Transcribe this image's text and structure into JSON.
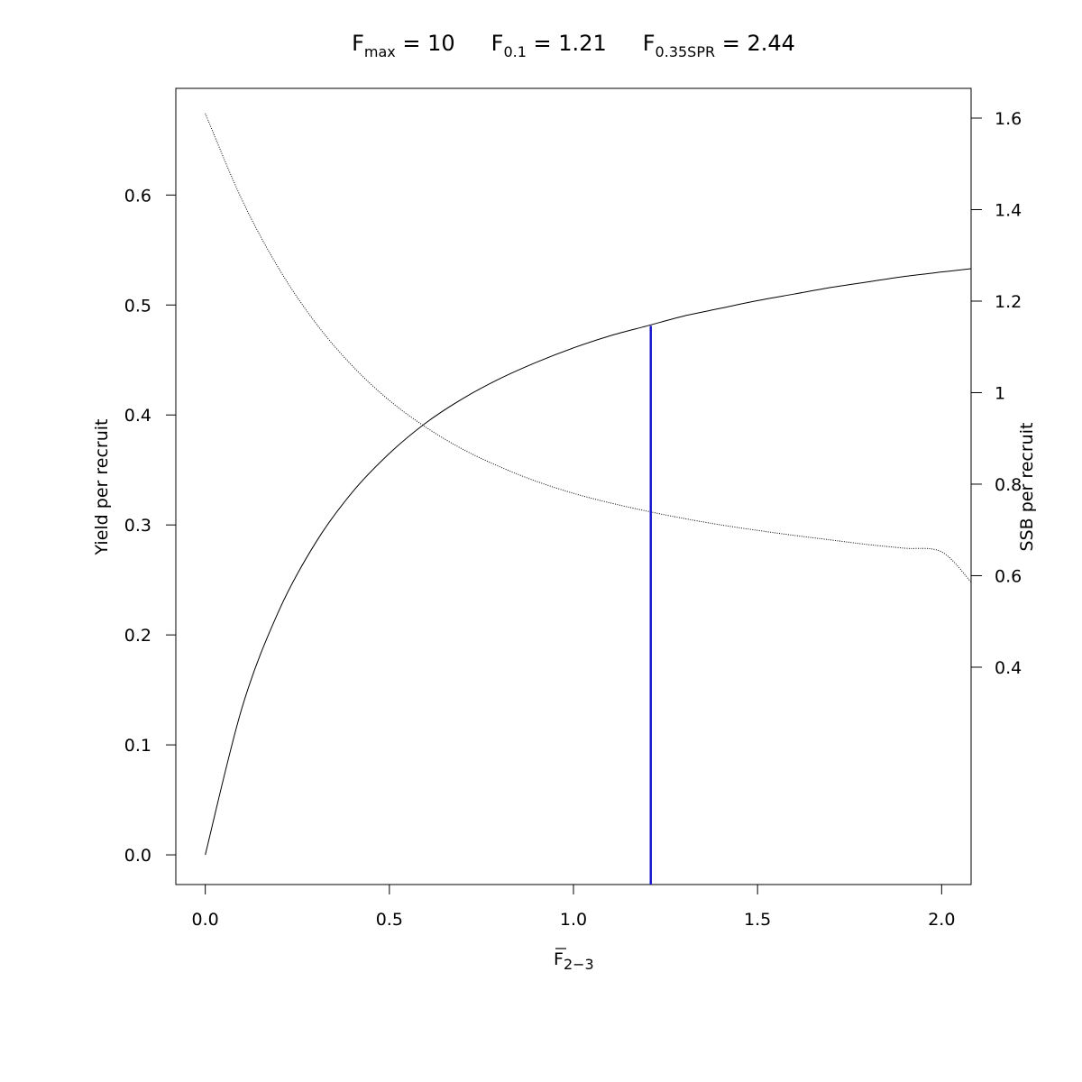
{
  "title": {
    "fmax": {
      "main": "F",
      "sub": "max",
      "rest": " = 10"
    },
    "f01": {
      "main": "F",
      "sub": "0.1",
      "rest": " = 1.21"
    },
    "f035": {
      "main": "F",
      "sub": "0.35SPR",
      "rest": " = 2.44"
    }
  },
  "chart_data": {
    "type": "line",
    "xlabel": {
      "main": "F",
      "sub": "2−3"
    },
    "ylabel": "Yield per recruit",
    "y2label": "SSB per recruit",
    "xlim": [
      -0.08,
      2.08
    ],
    "ylim": [
      -0.027,
      0.697
    ],
    "y2lim": [
      -0.075,
      1.665
    ],
    "x_ticks": [
      0,
      0.5,
      1,
      1.5,
      2
    ],
    "x_tick_labels": [
      "0.0",
      "0.5",
      "1.0",
      "1.5",
      "2.0"
    ],
    "y_ticks": [
      0,
      0.1,
      0.2,
      0.3,
      0.4,
      0.5,
      0.6
    ],
    "y_tick_labels": [
      "0.0",
      "0.1",
      "0.2",
      "0.3",
      "0.4",
      "0.5",
      "0.6"
    ],
    "y2_ticks": [
      0.4,
      0.6,
      0.8,
      1.0,
      1.2,
      1.4,
      1.6
    ],
    "y2_tick_labels": [
      "0.4",
      "0.6",
      "0.8",
      "1",
      "1.2",
      "1.4",
      "1.6"
    ],
    "series": [
      {
        "name": "Yield per recruit",
        "axis": "left",
        "style": "solid",
        "color": "#000000",
        "x": [
          0,
          0.1,
          0.2,
          0.3,
          0.4,
          0.5,
          0.6,
          0.7,
          0.8,
          0.9,
          1.0,
          1.1,
          1.2,
          1.3,
          1.4,
          1.5,
          1.6,
          1.7,
          1.8,
          1.9,
          2.0,
          2.08
        ],
        "y": [
          0,
          0.134,
          0.222,
          0.284,
          0.33,
          0.365,
          0.393,
          0.415,
          0.433,
          0.448,
          0.461,
          0.472,
          0.481,
          0.49,
          0.497,
          0.504,
          0.51,
          0.516,
          0.521,
          0.526,
          0.53,
          0.533
        ]
      },
      {
        "name": "SSB per recruit",
        "axis": "right",
        "style": "dotted",
        "color": "#000000",
        "x": [
          0,
          0.1,
          0.2,
          0.3,
          0.4,
          0.5,
          0.6,
          0.7,
          0.8,
          0.9,
          1.0,
          1.1,
          1.2,
          1.3,
          1.4,
          1.5,
          1.6,
          1.7,
          1.8,
          1.9,
          2.0,
          2.08
        ],
        "y": [
          1.61,
          1.421,
          1.271,
          1.152,
          1.058,
          0.983,
          0.924,
          0.876,
          0.838,
          0.806,
          0.78,
          0.759,
          0.741,
          0.725,
          0.711,
          0.699,
          0.688,
          0.678,
          0.668,
          0.66,
          0.652,
          0.586
        ]
      }
    ],
    "reference_line": {
      "name": "F0.1",
      "x": 1.21,
      "y_from": -0.027,
      "y_to": 0.481,
      "color": "#1a1acc"
    }
  }
}
